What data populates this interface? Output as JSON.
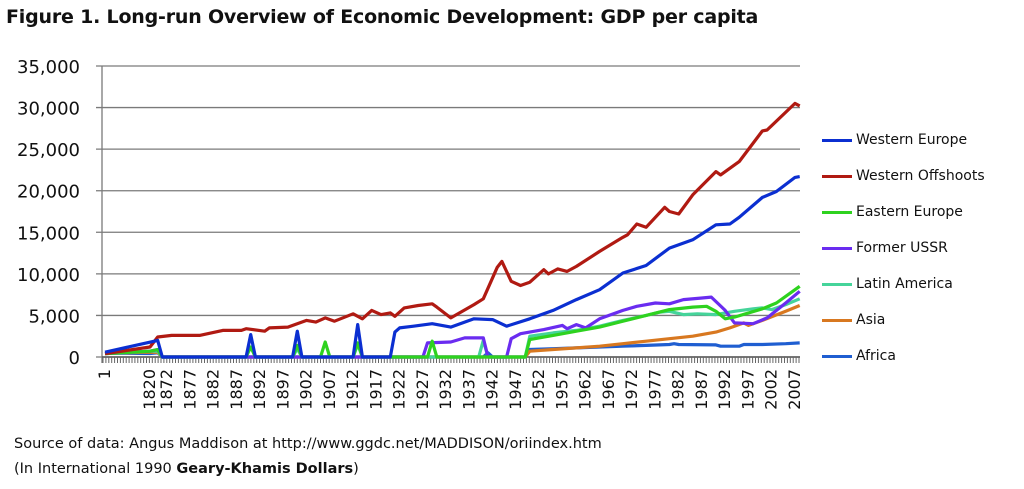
{
  "title": "Figure 1. Long-run Overview of Economic Development: GDP per capita",
  "source_line": "Source of data: Angus Maddison at http://www.ggdc.net/MADDISON/oriindex.htm",
  "units_prefix": "(In International 1990 ",
  "units_bold": "Geary-Khamis Dollars",
  "units_suffix": ")",
  "chart_data": {
    "type": "line",
    "title": "Figure 1. Long-run Overview of Economic Development: GDP per capita",
    "xlabel": "",
    "ylabel": "",
    "ylim": [
      0,
      35000
    ],
    "yticks": [
      0,
      5000,
      10000,
      15000,
      20000,
      25000,
      30000,
      35000
    ],
    "ytick_labels": [
      "0",
      "5,000",
      "10,000",
      "15,000",
      "20,000",
      "25,000",
      "30,000",
      "35,000"
    ],
    "xtick_labels": [
      "1",
      "1820",
      "1872",
      "1877",
      "1882",
      "1887",
      "1892",
      "1897",
      "1902",
      "1907",
      "1912",
      "1917",
      "1922",
      "1927",
      "1932",
      "1937",
      "1942",
      "1947",
      "1952",
      "1957",
      "1962",
      "1967",
      "1972",
      "1977",
      "1982",
      "1987",
      "1992",
      "1997",
      "2002",
      "2007"
    ],
    "grid": true,
    "legend": "right",
    "series": [
      {
        "name": "Western Europe",
        "color": "#0b2fd1",
        "points": [
          [
            1,
            576
          ],
          [
            1870,
            2000
          ],
          [
            1871,
            0
          ],
          [
            1889,
            0
          ],
          [
            1890,
            2700
          ],
          [
            1891,
            0
          ],
          [
            1899,
            0
          ],
          [
            1900,
            3100
          ],
          [
            1901,
            0
          ],
          [
            1912,
            0
          ],
          [
            1913,
            3900
          ],
          [
            1914,
            0
          ],
          [
            1920,
            0
          ],
          [
            1921,
            3000
          ],
          [
            1922,
            3500
          ],
          [
            1925,
            3700
          ],
          [
            1929,
            4000
          ],
          [
            1933,
            3600
          ],
          [
            1938,
            4600
          ],
          [
            1942,
            4500
          ],
          [
            1945,
            3700
          ],
          [
            1950,
            4600
          ],
          [
            1955,
            5600
          ],
          [
            1960,
            6900
          ],
          [
            1965,
            8100
          ],
          [
            1970,
            10100
          ],
          [
            1975,
            11000
          ],
          [
            1980,
            13100
          ],
          [
            1985,
            14100
          ],
          [
            1990,
            15900
          ],
          [
            1993,
            16000
          ],
          [
            1995,
            16800
          ],
          [
            2000,
            19200
          ],
          [
            2003,
            19900
          ],
          [
            2007,
            21600
          ],
          [
            2008,
            21700
          ]
        ]
      },
      {
        "name": "Western Offshoots",
        "color": "#b01a12",
        "points": [
          [
            1,
            400
          ],
          [
            1820,
            1200
          ],
          [
            1870,
            2400
          ],
          [
            1873,
            2600
          ],
          [
            1879,
            2600
          ],
          [
            1884,
            3200
          ],
          [
            1888,
            3200
          ],
          [
            1889,
            3400
          ],
          [
            1893,
            3100
          ],
          [
            1894,
            3500
          ],
          [
            1898,
            3600
          ],
          [
            1902,
            4400
          ],
          [
            1904,
            4200
          ],
          [
            1906,
            4700
          ],
          [
            1908,
            4300
          ],
          [
            1912,
            5200
          ],
          [
            1914,
            4600
          ],
          [
            1916,
            5600
          ],
          [
            1918,
            5100
          ],
          [
            1920,
            5300
          ],
          [
            1921,
            4900
          ],
          [
            1923,
            5900
          ],
          [
            1926,
            6200
          ],
          [
            1929,
            6400
          ],
          [
            1930,
            6000
          ],
          [
            1933,
            4700
          ],
          [
            1938,
            6300
          ],
          [
            1940,
            7000
          ],
          [
            1943,
            10800
          ],
          [
            1944,
            11500
          ],
          [
            1946,
            9100
          ],
          [
            1948,
            8600
          ],
          [
            1950,
            9000
          ],
          [
            1953,
            10500
          ],
          [
            1954,
            10000
          ],
          [
            1956,
            10600
          ],
          [
            1958,
            10300
          ],
          [
            1960,
            10900
          ],
          [
            1965,
            12700
          ],
          [
            1970,
            14400
          ],
          [
            1971,
            14700
          ],
          [
            1973,
            16000
          ],
          [
            1975,
            15600
          ],
          [
            1979,
            18000
          ],
          [
            1980,
            17500
          ],
          [
            1982,
            17200
          ],
          [
            1985,
            19500
          ],
          [
            1990,
            22300
          ],
          [
            1991,
            21900
          ],
          [
            1995,
            23500
          ],
          [
            2000,
            27200
          ],
          [
            2001,
            27300
          ],
          [
            2007,
            30500
          ],
          [
            2008,
            30200
          ]
        ]
      },
      {
        "name": "Eastern Europe",
        "color": "#2ed21f",
        "points": [
          [
            1,
            400
          ],
          [
            1820,
            700
          ],
          [
            1870,
            900
          ],
          [
            1871,
            0
          ],
          [
            1889,
            0
          ],
          [
            1890,
            1200
          ],
          [
            1891,
            0
          ],
          [
            1899,
            0
          ],
          [
            1900,
            1400
          ],
          [
            1901,
            0
          ],
          [
            1905,
            0
          ],
          [
            1906,
            1800
          ],
          [
            1907,
            0
          ],
          [
            1912,
            0
          ],
          [
            1913,
            1700
          ],
          [
            1914,
            0
          ],
          [
            1928,
            0
          ],
          [
            1929,
            1900
          ],
          [
            1930,
            0
          ],
          [
            1949,
            0
          ],
          [
            1950,
            2100
          ],
          [
            1955,
            2600
          ],
          [
            1960,
            3100
          ],
          [
            1965,
            3600
          ],
          [
            1970,
            4300
          ],
          [
            1975,
            5000
          ],
          [
            1980,
            5700
          ],
          [
            1985,
            6000
          ],
          [
            1988,
            6100
          ],
          [
            1990,
            5500
          ],
          [
            1992,
            4600
          ],
          [
            1994,
            4800
          ],
          [
            2000,
            5800
          ],
          [
            2003,
            6500
          ],
          [
            2007,
            8100
          ],
          [
            2008,
            8500
          ]
        ]
      },
      {
        "name": "Former USSR",
        "color": "#6a2cf0",
        "points": [
          [
            1,
            400
          ],
          [
            1820,
            700
          ],
          [
            1870,
            900
          ],
          [
            1871,
            0
          ],
          [
            1927,
            0
          ],
          [
            1928,
            1700
          ],
          [
            1933,
            1800
          ],
          [
            1936,
            2300
          ],
          [
            1940,
            2300
          ],
          [
            1941,
            0
          ],
          [
            1945,
            0
          ],
          [
            1946,
            2200
          ],
          [
            1948,
            2800
          ],
          [
            1953,
            3300
          ],
          [
            1957,
            3800
          ],
          [
            1958,
            3400
          ],
          [
            1960,
            3900
          ],
          [
            1962,
            3500
          ],
          [
            1965,
            4600
          ],
          [
            1970,
            5600
          ],
          [
            1973,
            6100
          ],
          [
            1977,
            6500
          ],
          [
            1980,
            6400
          ],
          [
            1983,
            6900
          ],
          [
            1987,
            7100
          ],
          [
            1989,
            7200
          ],
          [
            1992,
            5600
          ],
          [
            1994,
            4100
          ],
          [
            1998,
            4000
          ],
          [
            2001,
            4700
          ],
          [
            2005,
            6500
          ],
          [
            2008,
            7900
          ]
        ]
      },
      {
        "name": "Latin America",
        "color": "#45d49a",
        "points": [
          [
            1,
            400
          ],
          [
            1820,
            700
          ],
          [
            1870,
            700
          ],
          [
            1871,
            0
          ],
          [
            1899,
            0
          ],
          [
            1900,
            1000
          ],
          [
            1901,
            0
          ],
          [
            1912,
            0
          ],
          [
            1913,
            1500
          ],
          [
            1914,
            0
          ],
          [
            1939,
            0
          ],
          [
            1940,
            2000
          ],
          [
            1941,
            0
          ],
          [
            1949,
            0
          ],
          [
            1950,
            2500
          ],
          [
            1955,
            2900
          ],
          [
            1960,
            3200
          ],
          [
            1965,
            3700
          ],
          [
            1970,
            4400
          ],
          [
            1975,
            5000
          ],
          [
            1978,
            5400
          ],
          [
            1980,
            5500
          ],
          [
            1983,
            5100
          ],
          [
            1986,
            5200
          ],
          [
            1990,
            5100
          ],
          [
            1994,
            5500
          ],
          [
            1998,
            5800
          ],
          [
            2000,
            5900
          ],
          [
            2002,
            5700
          ],
          [
            2005,
            6300
          ],
          [
            2008,
            7000
          ]
        ]
      },
      {
        "name": "Asia",
        "color": "#d87820",
        "points": [
          [
            1,
            450
          ],
          [
            1820,
            580
          ],
          [
            1870,
            550
          ],
          [
            1871,
            0
          ],
          [
            1949,
            0
          ],
          [
            1950,
            700
          ],
          [
            1955,
            900
          ],
          [
            1960,
            1100
          ],
          [
            1965,
            1300
          ],
          [
            1970,
            1600
          ],
          [
            1975,
            1900
          ],
          [
            1980,
            2200
          ],
          [
            1985,
            2500
          ],
          [
            1990,
            3000
          ],
          [
            1993,
            3500
          ],
          [
            1996,
            4100
          ],
          [
            1997,
            3800
          ],
          [
            2000,
            4400
          ],
          [
            2005,
            5500
          ],
          [
            2008,
            6200
          ]
        ]
      },
      {
        "name": "Africa",
        "color": "#1f5ed1",
        "points": [
          [
            1,
            470
          ],
          [
            1820,
            420
          ],
          [
            1870,
            500
          ],
          [
            1871,
            0
          ],
          [
            1940,
            0
          ],
          [
            1941,
            500
          ],
          [
            1942,
            0
          ],
          [
            1949,
            0
          ],
          [
            1950,
            900
          ],
          [
            1955,
            1000
          ],
          [
            1960,
            1100
          ],
          [
            1965,
            1200
          ],
          [
            1970,
            1300
          ],
          [
            1975,
            1400
          ],
          [
            1980,
            1500
          ],
          [
            1981,
            1600
          ],
          [
            1982,
            1500
          ],
          [
            1990,
            1450
          ],
          [
            1991,
            1300
          ],
          [
            1995,
            1300
          ],
          [
            1996,
            1500
          ],
          [
            2000,
            1500
          ],
          [
            2005,
            1600
          ],
          [
            2008,
            1700
          ]
        ]
      }
    ]
  }
}
